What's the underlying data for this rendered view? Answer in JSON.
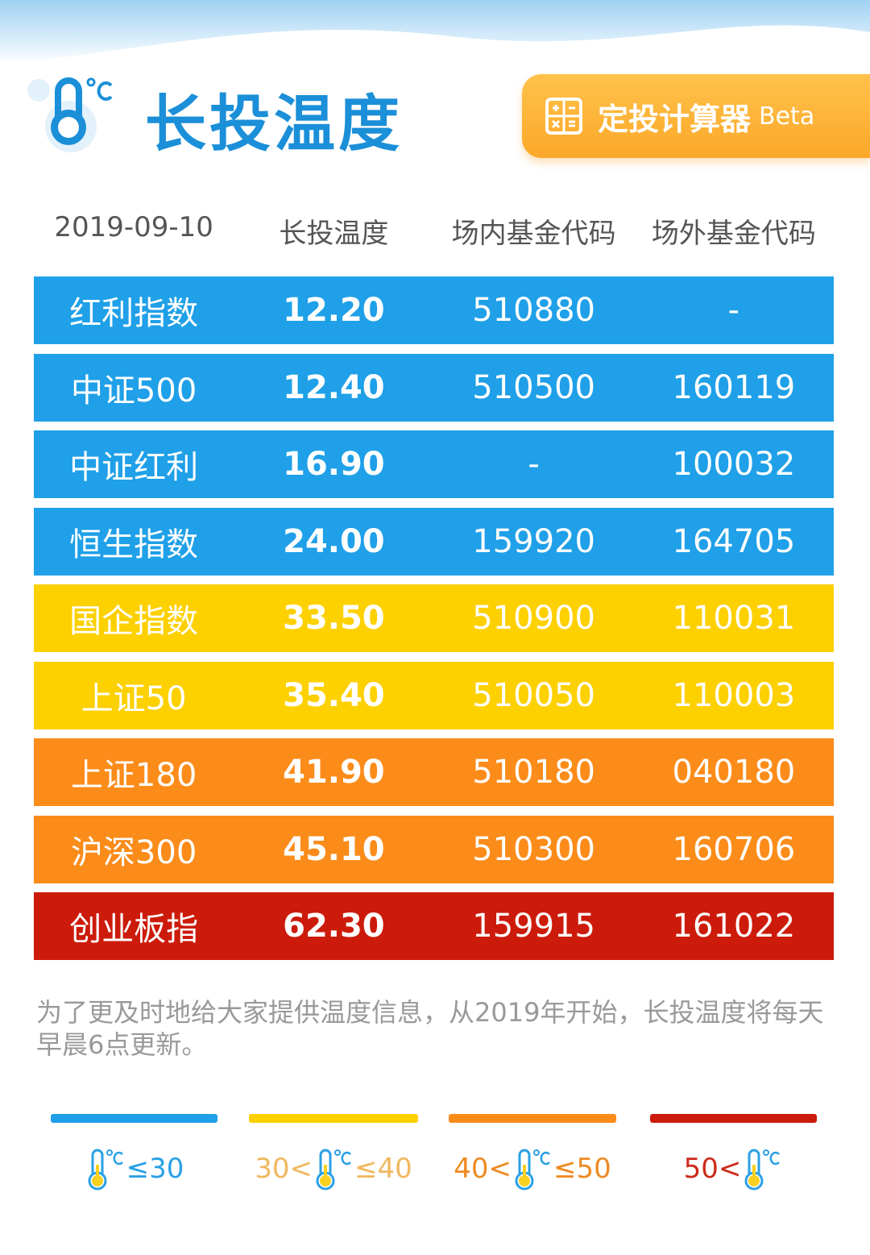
{
  "header": {
    "title": "长投温度",
    "button": {
      "label": "定投计算器",
      "badge": "Beta"
    }
  },
  "table": {
    "columns": [
      "2019-09-10",
      "长投温度",
      "场内基金代码",
      "场外基金代码"
    ],
    "rows": [
      {
        "name": "红利指数",
        "temperature": "12.20",
        "onsite_code": "510880",
        "offsite_code": "-",
        "color": "#1fa0e8"
      },
      {
        "name": "中证500",
        "temperature": "12.40",
        "onsite_code": "510500",
        "offsite_code": "160119",
        "color": "#1fa0e8"
      },
      {
        "name": "中证红利",
        "temperature": "16.90",
        "onsite_code": "-",
        "offsite_code": "100032",
        "color": "#1fa0e8"
      },
      {
        "name": "恒生指数",
        "temperature": "24.00",
        "onsite_code": "159920",
        "offsite_code": "164705",
        "color": "#1fa0e8"
      },
      {
        "name": "国企指数",
        "temperature": "33.50",
        "onsite_code": "510900",
        "offsite_code": "110031",
        "color": "#fdd000"
      },
      {
        "name": "上证50",
        "temperature": "35.40",
        "onsite_code": "510050",
        "offsite_code": "110003",
        "color": "#fdd000"
      },
      {
        "name": "上证180",
        "temperature": "41.90",
        "onsite_code": "510180",
        "offsite_code": "040180",
        "color": "#fb8c1a"
      },
      {
        "name": "沪深300",
        "temperature": "45.10",
        "onsite_code": "510300",
        "offsite_code": "160706",
        "color": "#fb8c1a"
      },
      {
        "name": "创业板指",
        "temperature": "62.30",
        "onsite_code": "159915",
        "offsite_code": "161022",
        "color": "#cc1b0a"
      }
    ]
  },
  "note": "为了更及时地给大家提供温度信息，从2019年开始，长投温度将每天早晨6点更新。",
  "legend": [
    {
      "prefix": "",
      "suffix": "≤30",
      "color": "#1fa0e8",
      "text_color": "#2aa0e6"
    },
    {
      "prefix": "30<",
      "suffix": "≤40",
      "color": "#fdd000",
      "text_color": "#f0b860"
    },
    {
      "prefix": "40<",
      "suffix": "≤50",
      "color": "#fb8c1a",
      "text_color": "#ee8a22"
    },
    {
      "prefix": "50<",
      "suffix": "",
      "color": "#cc1b0a",
      "text_color": "#cc2a1a"
    }
  ]
}
